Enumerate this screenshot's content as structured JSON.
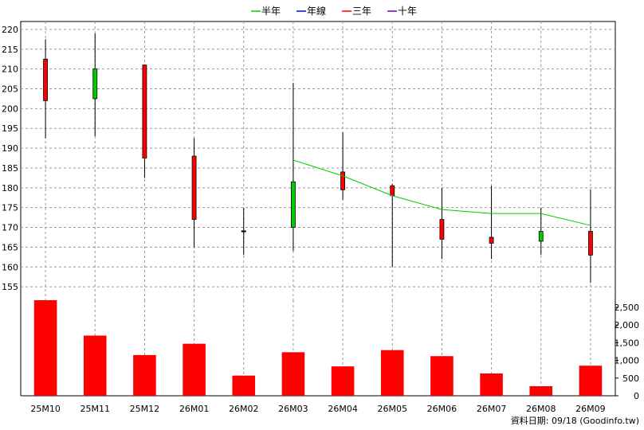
{
  "chart_data": {
    "type": "candlestick",
    "categories": [
      "25M10",
      "25M11",
      "25M12",
      "26M01",
      "26M02",
      "26M03",
      "26M04",
      "26M05",
      "26M06",
      "26M07",
      "26M08",
      "26M09"
    ],
    "price": {
      "ylim": [
        151,
        222
      ],
      "yticks": [
        155,
        160,
        165,
        170,
        175,
        180,
        185,
        190,
        195,
        200,
        205,
        210,
        215,
        220
      ],
      "candles": [
        {
          "open": 202,
          "high": 217.5,
          "low": 192.5,
          "close": 212.5
        },
        {
          "open": 210,
          "high": 219,
          "low": 193,
          "close": 202.5
        },
        {
          "open": 187.5,
          "high": 211,
          "low": 182.5,
          "close": 211
        },
        {
          "open": 172,
          "high": 192.5,
          "low": 165,
          "close": 188
        },
        {
          "open": 169,
          "high": 175,
          "low": 163,
          "close": 169
        },
        {
          "open": 181.5,
          "high": 206.5,
          "low": 164,
          "close": 170
        },
        {
          "open": 179.5,
          "high": 194,
          "low": 177,
          "close": 184
        },
        {
          "open": 178,
          "high": 181,
          "low": 160,
          "close": 180.5
        },
        {
          "open": 167,
          "high": 180,
          "low": 162,
          "close": 172
        },
        {
          "open": 166,
          "high": 180.5,
          "low": 162,
          "close": 167.5
        },
        {
          "open": 169,
          "high": 175,
          "low": 163,
          "close": 166.5
        },
        {
          "open": 163,
          "high": 179.5,
          "low": 156,
          "close": 169
        }
      ],
      "series": [
        {
          "name": "半年",
          "color": "#00cc00",
          "values": [
            null,
            null,
            null,
            null,
            null,
            187,
            183,
            178,
            174.5,
            173.5,
            173.5,
            170.5
          ]
        },
        {
          "name": "年線",
          "color": "#0000ff",
          "values": []
        },
        {
          "name": "三年",
          "color": "#ff0000",
          "values": []
        },
        {
          "name": "十年",
          "color": "#6600cc",
          "values": []
        }
      ],
      "up_color": "#ff0000",
      "down_color": "#00cc00"
    },
    "volume": {
      "type": "bar",
      "ylim": [
        0,
        2700
      ],
      "yticks": [
        0,
        500,
        1000,
        1500,
        2000,
        2500
      ],
      "ytick_labels": [
        "0",
        "500",
        "1,000",
        "1,500",
        "2,000",
        "2,500"
      ],
      "values": [
        2700,
        1700,
        1150,
        1470,
        570,
        1230,
        830,
        1290,
        1120,
        630,
        270,
        850
      ],
      "color": "#ff0000"
    },
    "grid": true,
    "legend_position": "top-center"
  },
  "footnote": "資料日期: 09/18  (Goodinfo.tw)"
}
